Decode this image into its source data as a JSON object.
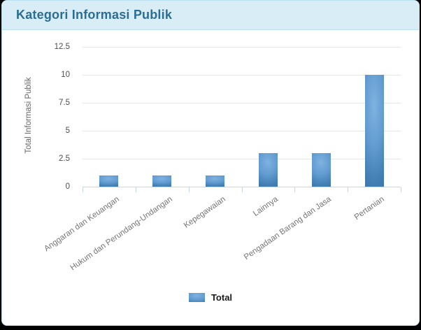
{
  "card": {
    "title": "Kategori Informasi Publik"
  },
  "chart_data": {
    "type": "bar",
    "title": "Kategori Informasi Publik",
    "categories": [
      "Anggaran dan Keuangan",
      "Hukum dan Perundang-Undangan",
      "Kepegawaian",
      "Lainnya",
      "Pengadaan Barang dan Jasa",
      "Pertanian"
    ],
    "series": [
      {
        "name": "Total",
        "values": [
          1,
          1,
          1,
          3,
          3,
          10
        ]
      }
    ],
    "xlabel": "",
    "ylabel": "Total Informasi Publik",
    "ylim": [
      0,
      12.5
    ],
    "yticks": [
      0,
      2.5,
      5,
      7.5,
      10,
      12.5
    ],
    "grid": true,
    "legend_position": "bottom",
    "colors": {
      "bar_main": "#4a86c0",
      "bar_light": "#7fb2e0",
      "bar_dark": "#366d9e",
      "gridline": "#e6e6e6",
      "axis_line": "#c3d9ea",
      "header_bg": "#d9edf7",
      "header_text": "#2b6d94",
      "panel_border": "#b9dfee"
    }
  }
}
